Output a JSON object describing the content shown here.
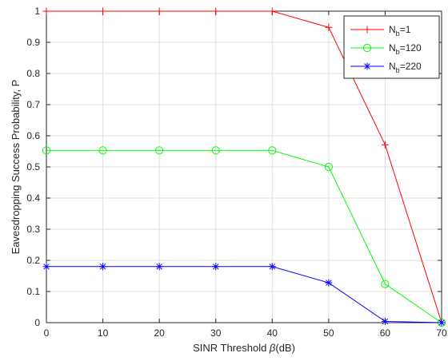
{
  "chart_data": {
    "type": "line",
    "title": "",
    "xlabel_prefix": "SINR Threshold ",
    "xlabel_symbol": "β",
    "xlabel_suffix": "(dB)",
    "ylabel": "Eavesdropping Success Probability, P",
    "x": [
      0,
      10,
      20,
      30,
      40,
      50,
      60,
      70
    ],
    "xlim": [
      0,
      70
    ],
    "ylim": [
      0,
      1
    ],
    "xticks": [
      "0",
      "10",
      "20",
      "30",
      "40",
      "50",
      "60",
      "70"
    ],
    "yticks": [
      "0",
      "0.1",
      "0.2",
      "0.3",
      "0.4",
      "0.5",
      "0.6",
      "0.7",
      "0.8",
      "0.9",
      "1"
    ],
    "grid": true,
    "legend_position": "top-right",
    "series": [
      {
        "name_base": "N",
        "name_sub": "b",
        "name_rest": "=1",
        "color": "#ff0000",
        "marker": "plus",
        "values": [
          1.0,
          1.0,
          1.0,
          1.0,
          1.0,
          0.948,
          0.571,
          0.0
        ]
      },
      {
        "name_base": "N",
        "name_sub": "b",
        "name_rest": "=120",
        "color": "#00ff00",
        "marker": "circle",
        "values": [
          0.553,
          0.553,
          0.553,
          0.553,
          0.553,
          0.5,
          0.124,
          0.0
        ]
      },
      {
        "name_base": "N",
        "name_sub": "b",
        "name_rest": "=220",
        "color": "#0000ff",
        "marker": "star",
        "values": [
          0.18,
          0.18,
          0.18,
          0.18,
          0.18,
          0.128,
          0.004,
          0.0
        ]
      }
    ]
  }
}
